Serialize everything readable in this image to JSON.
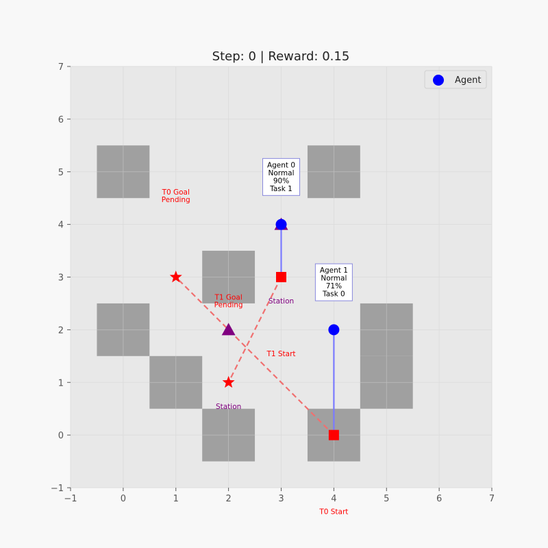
{
  "chart_data": {
    "type": "scatter",
    "title": "Step: 0 | Reward: 0.15",
    "xlim": [
      -1,
      7
    ],
    "ylim": [
      -1,
      7
    ],
    "xticks": [
      -1,
      0,
      1,
      2,
      3,
      4,
      5,
      6,
      7
    ],
    "yticks": [
      -1,
      0,
      1,
      2,
      3,
      4,
      5,
      6,
      7
    ],
    "tick_labels": [
      "−1",
      "0",
      "1",
      "2",
      "3",
      "4",
      "5",
      "6",
      "7"
    ],
    "grid": true,
    "legend": {
      "location": "top-right",
      "entries": [
        {
          "label": "Agent",
          "color": "#0000ff"
        }
      ]
    },
    "obstacles": [
      {
        "x": 0,
        "y": 5
      },
      {
        "x": 4,
        "y": 5
      },
      {
        "x": 2,
        "y": 3
      },
      {
        "x": 0,
        "y": 2
      },
      {
        "x": 5,
        "y": 2
      },
      {
        "x": 1,
        "y": 1
      },
      {
        "x": 5,
        "y": 1
      },
      {
        "x": 2,
        "y": 0
      },
      {
        "x": 4,
        "y": 0
      }
    ],
    "stations": [
      {
        "x": 3,
        "y": 4,
        "label": "Station",
        "label_x": 3,
        "label_y": 2.55
      },
      {
        "x": 2,
        "y": 2,
        "label": "Station",
        "label_x": 2,
        "label_y": 0.55
      }
    ],
    "tasks": [
      {
        "id": "T0",
        "start": {
          "x": 4,
          "y": 0
        },
        "goal": {
          "x": 1,
          "y": 3
        },
        "start_label": "T0 Start",
        "start_label_x": 4,
        "start_label_y": -1.45,
        "goal_label": [
          "T0 Goal",
          "Pending"
        ],
        "goal_label_x": 1,
        "goal_label_y": 4.55
      },
      {
        "id": "T1",
        "start": {
          "x": 3,
          "y": 3
        },
        "goal": {
          "x": 2,
          "y": 1
        },
        "start_label": "T1 Start",
        "start_label_x": 3,
        "start_label_y": 1.55,
        "goal_label": [
          "T1 Goal",
          "Pending"
        ],
        "goal_label_x": 2,
        "goal_label_y": 2.55
      }
    ],
    "agents": [
      {
        "id": 0,
        "x": 3,
        "y": 4,
        "target_x": 3,
        "target_y": 3,
        "info": [
          "Agent 0",
          "Normal",
          "90%",
          "Task 1"
        ],
        "info_x": 3,
        "info_y": 4.55
      },
      {
        "id": 1,
        "x": 4,
        "y": 2,
        "target_x": 4,
        "target_y": 0,
        "info": [
          "Agent 1",
          "Normal",
          "71%",
          "Task 0"
        ],
        "info_x": 4,
        "info_y": 2.55
      }
    ],
    "colors": {
      "figure_bg": "#f8f8f8",
      "axes_bg": "#e8e8e8",
      "obstacle": "#a0a0a0",
      "agent": "#0000ff",
      "agent_path": "#7a7aff",
      "task": "#ff0000",
      "task_path": "#f07070",
      "station": "#800080",
      "text_dark": "#222222",
      "tick": "#555555"
    }
  }
}
